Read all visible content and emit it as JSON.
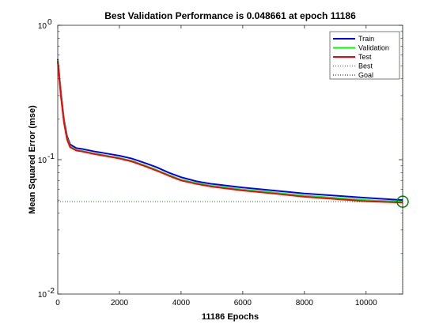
{
  "chart_data": {
    "type": "line",
    "title": "Best Validation Performance is 0.048661 at epoch 11186",
    "xlabel": "11186 Epochs",
    "ylabel": "Mean Squared Error  (mse)",
    "x_scale": "linear",
    "y_scale": "log",
    "xlim": [
      0,
      11186
    ],
    "ylim": [
      0.01,
      1
    ],
    "x_ticks": [
      0,
      2000,
      4000,
      6000,
      8000,
      10000
    ],
    "x_tick_labels": [
      "0",
      "2000",
      "4000",
      "6000",
      "8000",
      "10000"
    ],
    "y_ticks": [
      0.01,
      0.1,
      1
    ],
    "y_tick_labels": [
      {
        "base": "10",
        "exp": "-2"
      },
      {
        "base": "10",
        "exp": "-1"
      },
      {
        "base": "10",
        "exp": "0"
      }
    ],
    "grid": false,
    "legend_position": "top-right",
    "series": [
      {
        "name": "Train",
        "color": "#0000ff",
        "style": "solid",
        "x": [
          0,
          100,
          200,
          300,
          400,
          600,
          800,
          1200,
          1600,
          2000,
          2400,
          2800,
          3200,
          3600,
          4000,
          4500,
          5000,
          6000,
          7000,
          8000,
          9000,
          10000,
          11186
        ],
        "y": [
          0.56,
          0.32,
          0.2,
          0.15,
          0.13,
          0.122,
          0.12,
          0.115,
          0.111,
          0.107,
          0.102,
          0.095,
          0.088,
          0.08,
          0.074,
          0.069,
          0.066,
          0.062,
          0.059,
          0.056,
          0.054,
          0.052,
          0.05
        ]
      },
      {
        "name": "Validation",
        "color": "#00ff00",
        "style": "solid",
        "x": [
          0,
          100,
          200,
          300,
          400,
          600,
          800,
          1200,
          1600,
          2000,
          2400,
          2800,
          3200,
          3600,
          4000,
          4500,
          5000,
          6000,
          7000,
          8000,
          9000,
          10000,
          11186
        ],
        "y": [
          0.55,
          0.31,
          0.195,
          0.145,
          0.126,
          0.118,
          0.116,
          0.111,
          0.107,
          0.103,
          0.098,
          0.091,
          0.084,
          0.077,
          0.071,
          0.067,
          0.064,
          0.06,
          0.057,
          0.054,
          0.052,
          0.05,
          0.048661
        ]
      },
      {
        "name": "Test",
        "color": "#ff0000",
        "style": "solid",
        "x": [
          0,
          100,
          200,
          300,
          400,
          600,
          800,
          1200,
          1600,
          2000,
          2400,
          2800,
          3200,
          3600,
          4000,
          4500,
          5000,
          6000,
          7000,
          8000,
          9000,
          10000,
          11186
        ],
        "y": [
          0.54,
          0.3,
          0.19,
          0.142,
          0.124,
          0.117,
          0.115,
          0.11,
          0.106,
          0.102,
          0.097,
          0.09,
          0.083,
          0.076,
          0.07,
          0.066,
          0.063,
          0.059,
          0.056,
          0.053,
          0.051,
          0.049,
          0.048
        ]
      }
    ],
    "best": {
      "name": "Best",
      "color": "#008000",
      "style": "dotted",
      "epoch": 11186,
      "value": 0.048661
    },
    "goal": {
      "name": "Goal",
      "color": "#000000",
      "style": "dotted",
      "value": 0
    }
  }
}
